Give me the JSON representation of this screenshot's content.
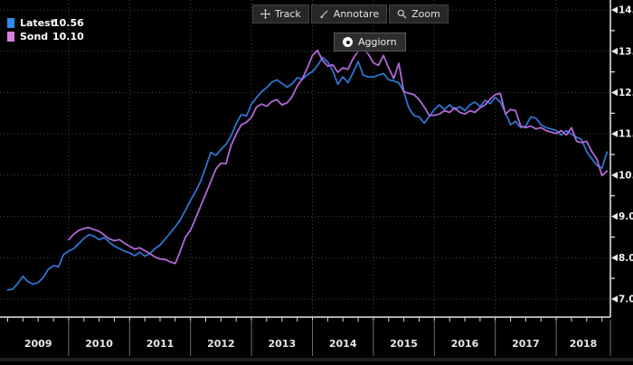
{
  "window": {
    "background": "#000000",
    "accent_blue": "#2f74cf",
    "accent_violet": "#b168d6"
  },
  "legend": {
    "items": [
      {
        "label": "Latest",
        "value": "10.56",
        "color": "#2e8bf0"
      },
      {
        "label": "Sond",
        "value": "10.10",
        "color": "#d97fe0"
      }
    ]
  },
  "toolbar": {
    "buttons": [
      {
        "label": "Track",
        "icon": "move-cross-icon"
      },
      {
        "label": "Annotare",
        "icon": "pencil-icon"
      },
      {
        "label": "Zoom",
        "icon": "magnifier-icon"
      }
    ],
    "refresh_button": {
      "label": "Aggiorn",
      "icon": "circle-dot-icon"
    }
  },
  "axes": {
    "y_tick_labels": [
      "14.00",
      "13.00",
      "12.00",
      "11.00",
      "10.00",
      "9.00",
      "8.00",
      "7.00"
    ],
    "x_year_labels": [
      "2009",
      "2010",
      "2011",
      "2012",
      "2013",
      "2014",
      "2015",
      "2016",
      "2017",
      "2018"
    ]
  },
  "chart_data": {
    "type": "line",
    "title": "",
    "xlabel": "",
    "ylabel": "",
    "x_range_years": [
      2009,
      2018.85
    ],
    "ylim": [
      7,
      14
    ],
    "y_ticks": [
      14,
      13,
      12,
      11,
      10,
      9,
      8,
      7
    ],
    "grid": "dotted",
    "legend_position": "top-left",
    "points_per_year": 12,
    "series": [
      {
        "name": "Latest",
        "color": "#2f74cf",
        "last_value": 10.56,
        "start_year": 2009,
        "values": [
          7.22,
          7.24,
          7.38,
          7.55,
          7.42,
          7.36,
          7.4,
          7.52,
          7.72,
          7.81,
          7.78,
          8.08,
          8.16,
          8.22,
          8.34,
          8.47,
          8.56,
          8.52,
          8.44,
          8.49,
          8.38,
          8.28,
          8.22,
          8.16,
          8.12,
          8.05,
          8.13,
          8.04,
          8.1,
          8.22,
          8.31,
          8.45,
          8.6,
          8.75,
          8.92,
          9.15,
          9.39,
          9.6,
          9.85,
          10.2,
          10.55,
          10.48,
          10.62,
          10.75,
          10.95,
          11.25,
          11.47,
          11.43,
          11.72,
          11.88,
          12.02,
          12.12,
          12.25,
          12.31,
          12.22,
          12.13,
          12.21,
          12.36,
          12.32,
          12.43,
          12.51,
          12.65,
          12.85,
          12.74,
          12.53,
          12.2,
          12.38,
          12.24,
          12.48,
          12.75,
          12.42,
          12.38,
          12.38,
          12.42,
          12.46,
          12.31,
          12.28,
          12.24,
          12.02,
          11.62,
          11.44,
          11.41,
          11.26,
          11.42,
          11.59,
          11.7,
          11.59,
          11.7,
          11.59,
          11.66,
          11.56,
          11.7,
          11.77,
          11.66,
          11.81,
          11.73,
          11.88,
          11.77,
          11.51,
          11.22,
          11.3,
          11.15,
          11.19,
          11.41,
          11.38,
          11.22,
          11.15,
          11.12,
          11.08,
          10.97,
          11.08,
          10.99,
          10.92,
          10.86,
          10.57,
          10.4,
          10.24,
          10.17,
          10.56
        ]
      },
      {
        "name": "Sond",
        "color": "#b168d6",
        "last_value": 10.1,
        "start_year": 2010,
        "values": [
          8.44,
          8.57,
          8.66,
          8.71,
          8.73,
          8.68,
          8.64,
          8.55,
          8.46,
          8.41,
          8.44,
          8.35,
          8.28,
          8.21,
          8.24,
          8.17,
          8.1,
          8.02,
          7.97,
          7.96,
          7.9,
          7.86,
          8.17,
          8.5,
          8.67,
          8.95,
          9.25,
          9.55,
          9.85,
          10.15,
          10.29,
          10.28,
          10.72,
          11.0,
          11.22,
          11.28,
          11.4,
          11.65,
          11.72,
          11.67,
          11.78,
          11.83,
          11.7,
          11.75,
          11.9,
          12.16,
          12.33,
          12.6,
          12.9,
          13.02,
          12.78,
          12.64,
          12.67,
          12.49,
          12.6,
          12.56,
          12.82,
          13.0,
          13.05,
          12.93,
          12.72,
          12.66,
          12.9,
          12.6,
          12.34,
          12.71,
          12.02,
          11.98,
          11.95,
          11.83,
          11.65,
          11.45,
          11.45,
          11.48,
          11.56,
          11.52,
          11.63,
          11.52,
          11.48,
          11.56,
          11.52,
          11.63,
          11.7,
          11.84,
          11.95,
          11.98,
          11.48,
          11.59,
          11.56,
          11.19,
          11.15,
          11.19,
          11.12,
          11.15,
          11.08,
          11.04,
          11.01,
          11.08,
          10.97,
          11.15,
          10.82,
          10.79,
          10.82,
          10.57,
          10.39,
          9.99,
          10.1
        ]
      }
    ]
  }
}
